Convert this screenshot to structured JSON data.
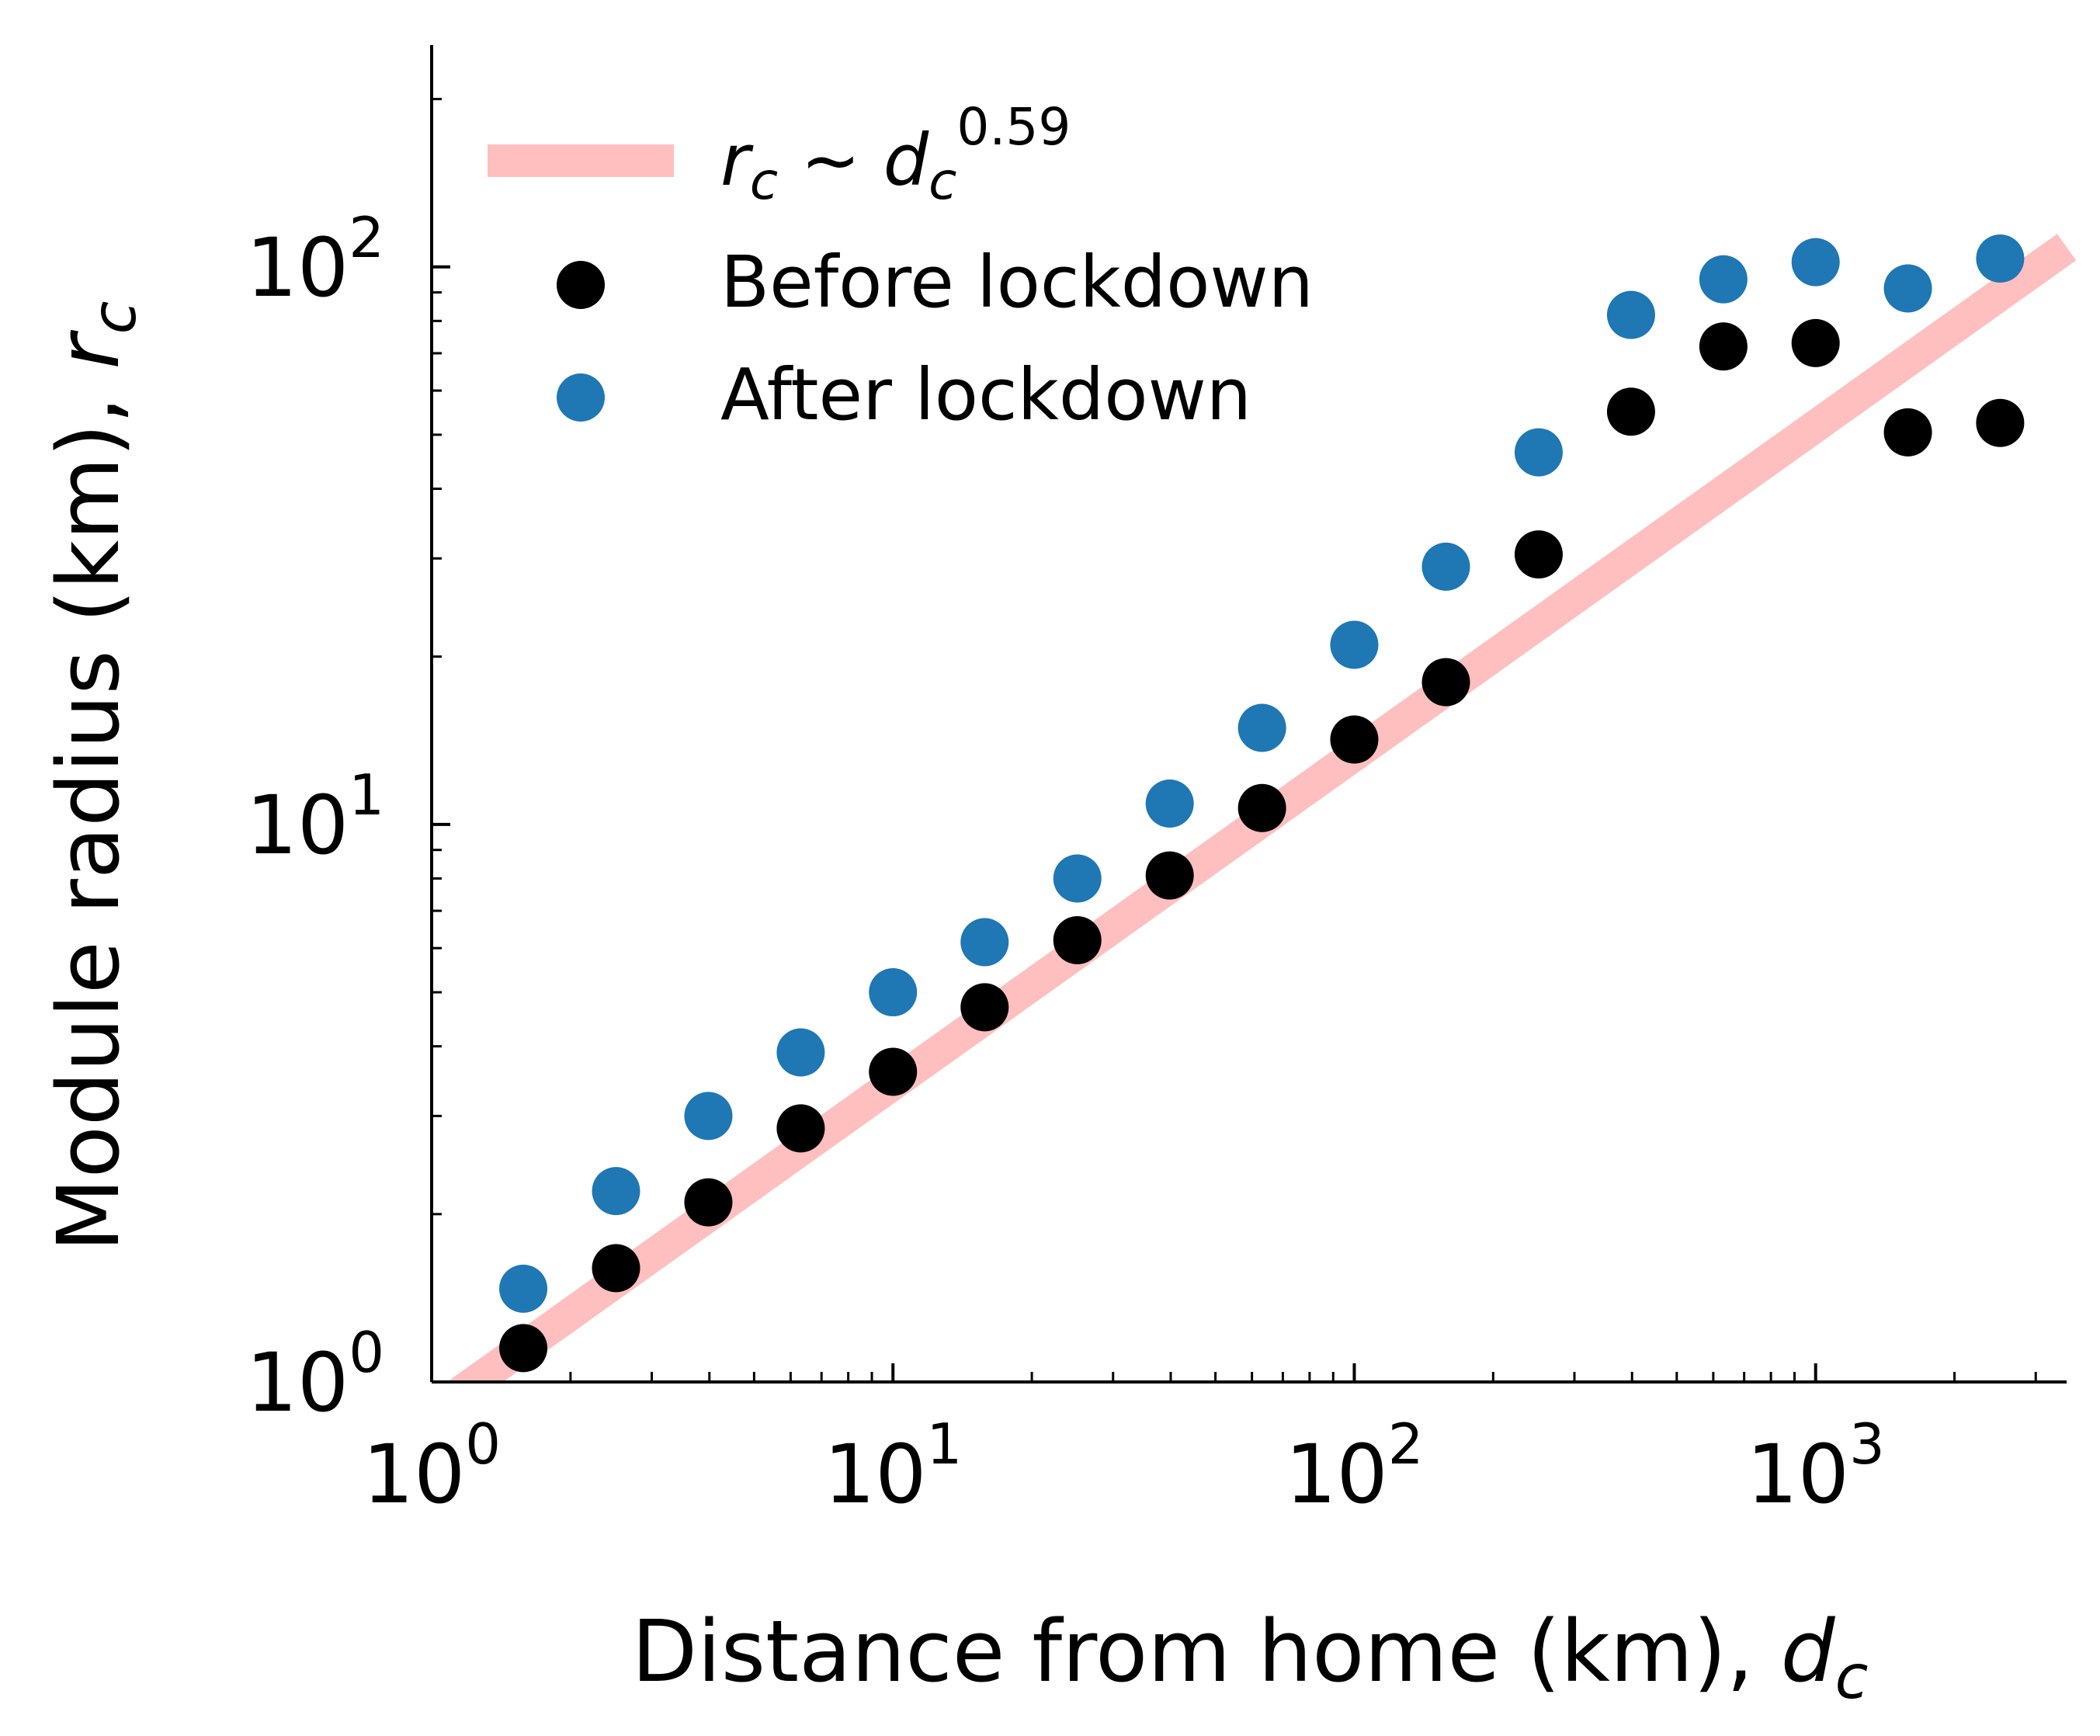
{
  "chart_data": {
    "type": "scatter",
    "title": "",
    "xlabel": "Distance from home (km), ",
    "xlabel_symbol": "d",
    "xlabel_sub": "c",
    "ylabel": "Module radius (km), ",
    "ylabel_symbol": "r",
    "ylabel_sub": "c",
    "xscale": "log",
    "yscale": "log",
    "xlim": [
      1,
      3500
    ],
    "ylim": [
      1,
      250
    ],
    "x_ticks": [
      {
        "value": 1,
        "base": "10",
        "exp": "0"
      },
      {
        "value": 10,
        "base": "10",
        "exp": "1"
      },
      {
        "value": 100,
        "base": "10",
        "exp": "2"
      },
      {
        "value": 1000,
        "base": "10",
        "exp": "3"
      }
    ],
    "y_ticks": [
      {
        "value": 1,
        "base": "10",
        "exp": "0"
      },
      {
        "value": 10,
        "base": "10",
        "exp": "1"
      },
      {
        "value": 100,
        "base": "10",
        "exp": "2"
      }
    ],
    "legend_position": "top-left",
    "fit_line": {
      "name": "r_c ~ d_c^0.59",
      "legend_symbol": "r",
      "legend_sub": "c",
      "legend_mid": " ~ ",
      "legend_symbol2": "d",
      "legend_sub2": "c",
      "legend_exp": "0.59",
      "exponent": 0.59,
      "coefficient": 0.88,
      "x_range": [
        1,
        3500
      ],
      "color": "#ffbfbf"
    },
    "series": [
      {
        "name": "Before lockdown",
        "color": "#000000",
        "x": [
          1.58,
          2.51,
          3.98,
          6.31,
          10,
          15.8,
          25.1,
          39.8,
          63.1,
          100,
          158,
          251,
          398,
          631,
          1000,
          1585,
          2512
        ],
        "y": [
          1.15,
          1.6,
          2.1,
          2.85,
          3.6,
          4.7,
          6.2,
          8.1,
          10.7,
          14.2,
          18,
          30.5,
          55,
          72,
          73,
          50.5,
          52.5
        ]
      },
      {
        "name": "After lockdown",
        "color": "#1f77b4",
        "x": [
          1.58,
          2.51,
          3.98,
          6.31,
          10,
          15.8,
          25.1,
          39.8,
          63.1,
          100,
          158,
          251,
          398,
          631,
          1000,
          1585,
          2512
        ],
        "y": [
          1.47,
          2.2,
          3.0,
          3.9,
          5.0,
          6.15,
          8.0,
          10.9,
          14.9,
          21.0,
          29.0,
          46.5,
          82,
          95,
          102,
          91.5,
          103.5
        ]
      }
    ]
  }
}
